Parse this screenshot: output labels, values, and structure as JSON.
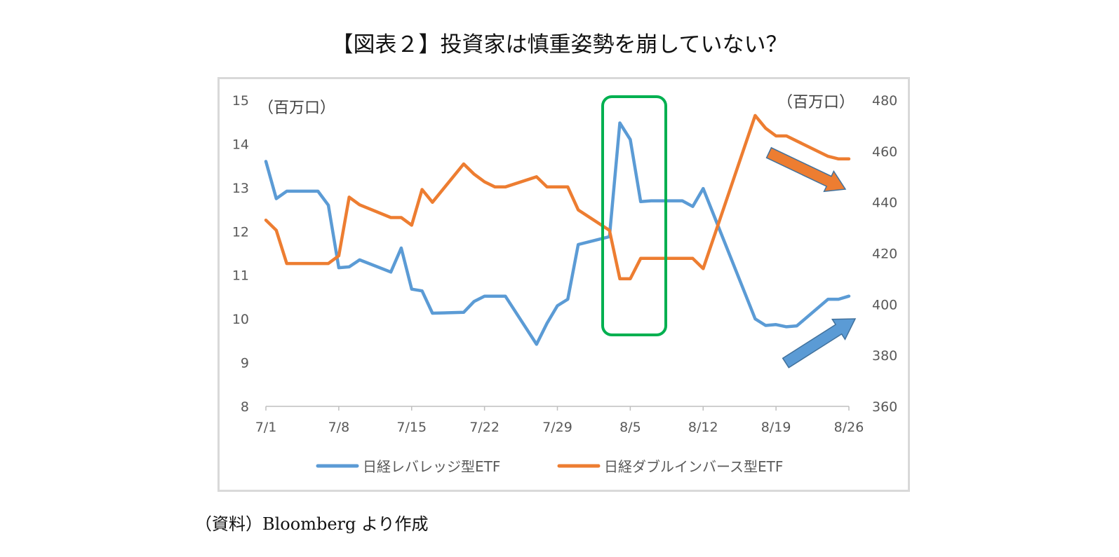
{
  "title": "【図表２】投資家は慎重姿勢を崩していない？",
  "source": "（資料）Bloomberg より作成",
  "chart_data": {
    "type": "line",
    "left_unit": "（百万口）",
    "right_unit": "（百万口）",
    "x_tick_labels": [
      "7/1",
      "7/8",
      "7/15",
      "7/22",
      "7/29",
      "8/5",
      "8/12",
      "8/19",
      "8/26"
    ],
    "x_ticks_day": [
      1,
      8,
      15,
      22,
      29,
      36,
      43,
      50,
      57
    ],
    "y_left": {
      "min": 8,
      "max": 15,
      "ticks": [
        8,
        9,
        10,
        11,
        12,
        13,
        14,
        15
      ]
    },
    "y_right": {
      "min": 360,
      "max": 480,
      "ticks": [
        360,
        380,
        400,
        420,
        440,
        460,
        480
      ]
    },
    "legend_position": "bottom",
    "series": [
      {
        "name": "日経レバレッジ型ETF",
        "axis": "left",
        "color": "#5b9bd5",
        "x": [
          1,
          2,
          3,
          4,
          5,
          6,
          7,
          8,
          9,
          10,
          13,
          14,
          15,
          16,
          17,
          20,
          21,
          22,
          23,
          24,
          27,
          28,
          29,
          30,
          31,
          34,
          35,
          36,
          37,
          38,
          41,
          42,
          43,
          48,
          49,
          50,
          51,
          52,
          55,
          56,
          57
        ],
        "values": [
          13.6,
          12.75,
          12.92,
          12.92,
          12.92,
          12.92,
          12.6,
          11.17,
          11.19,
          11.35,
          11.07,
          11.62,
          10.68,
          10.64,
          10.13,
          10.15,
          10.4,
          10.52,
          10.52,
          10.52,
          9.42,
          9.9,
          10.3,
          10.45,
          11.7,
          11.88,
          14.48,
          14.1,
          12.68,
          12.7,
          12.7,
          12.57,
          12.98,
          10.0,
          9.85,
          9.87,
          9.82,
          9.84,
          10.45,
          10.45,
          10.52
        ]
      },
      {
        "name": "日経ダブルインバース型ETF",
        "axis": "right",
        "color": "#ed7d31",
        "x": [
          1,
          2,
          3,
          4,
          5,
          6,
          7,
          8,
          9,
          10,
          13,
          14,
          15,
          16,
          17,
          20,
          21,
          22,
          23,
          24,
          27,
          28,
          29,
          30,
          31,
          34,
          35,
          36,
          37,
          38,
          41,
          42,
          43,
          48,
          49,
          50,
          51,
          52,
          55,
          56,
          57
        ],
        "values": [
          433,
          429,
          416,
          416,
          416,
          416,
          416,
          419,
          442,
          439,
          434,
          434,
          431,
          445,
          440,
          455,
          451,
          448,
          446,
          446,
          450,
          446,
          446,
          446,
          437,
          429,
          410,
          410,
          418,
          418,
          418,
          418,
          414,
          474,
          469,
          466,
          466,
          464,
          458,
          457,
          457
        ]
      }
    ]
  },
  "annotations": {
    "highlight_box_color": "#00b050",
    "down_arrow_color": "#ed7d31",
    "up_arrow_color": "#5b9bd5",
    "arrow_outline_color": "#41719c"
  }
}
